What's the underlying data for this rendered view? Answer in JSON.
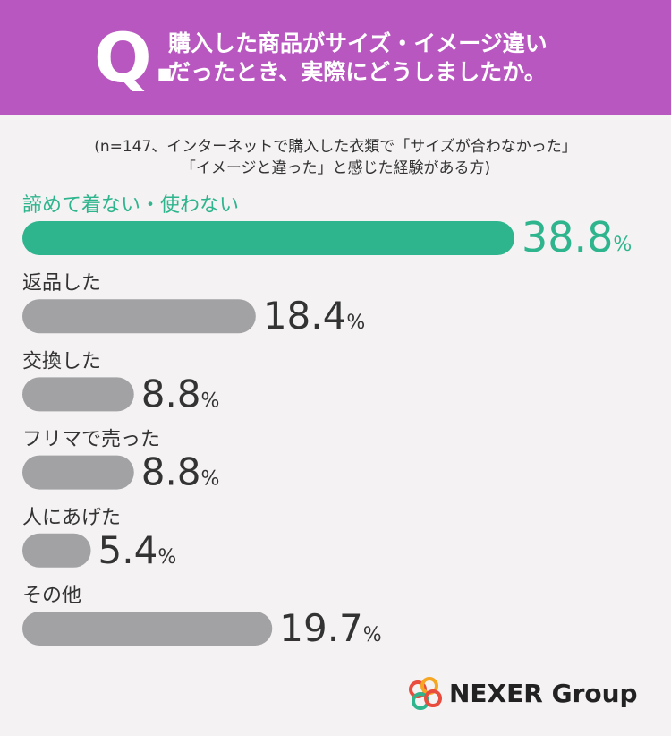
{
  "chart_data": {
    "type": "bar",
    "question_label": "Q.",
    "title": [
      "購入した商品がサイズ・イメージ違い",
      "だったとき、実際にどうしましたか。"
    ],
    "subtitle": [
      "(n=147、インターネットで購入した衣類で「サイズが合わなかった」",
      "「イメージと違った」と感じた経験がある方)"
    ],
    "categories": [
      "諦めて着ない・使わない",
      "返品した",
      "交換した",
      "フリマで売った",
      "人にあげた",
      "その他"
    ],
    "values": [
      38.8,
      18.4,
      8.8,
      8.8,
      5.4,
      19.7
    ],
    "value_suffix": "%",
    "colors": [
      "#2fb58e",
      "#a2a2a5",
      "#a2a2a5",
      "#a2a2a5",
      "#a2a2a5",
      "#a2a2a5"
    ],
    "logo": "NEXER Group"
  }
}
